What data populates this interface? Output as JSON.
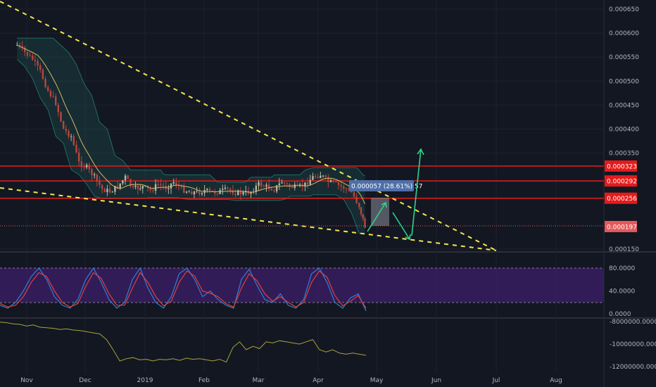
{
  "colors": {
    "background": "#131722",
    "up_candle": "#b7b7a4",
    "down_candle": "#b9453f",
    "ma": "#d6b764",
    "band": "#1f6b63",
    "trendline": "#f3e84b",
    "level": "#e41b1b",
    "arrow": "#2fd28a",
    "rsi_band": "#3e1f6b",
    "stoch_k": "#2f7fd6",
    "stoch_d": "#e0413a",
    "obv": "#a9a23a"
  },
  "chart_data": [
    {
      "type": "candlestick",
      "pane": "price",
      "x_labels": [
        "Nov",
        "Dec",
        "2019",
        "Feb",
        "Mar",
        "Apr",
        "May",
        "Jun",
        "Jul",
        "Aug"
      ],
      "y_ticks": [
        "0.000650",
        "0.000600",
        "0.000550",
        "0.000500",
        "0.000450",
        "0.000400",
        "0.000350",
        "0.000150"
      ],
      "ylim": [
        0.00015,
        0.00065
      ],
      "price_series": [
        [
          "2018-10-27",
          0.000575
        ],
        [
          "2018-10-31",
          0.00056
        ],
        [
          "2018-11-04",
          0.000545
        ],
        [
          "2018-11-08",
          0.00052
        ],
        [
          "2018-11-12",
          0.00048
        ],
        [
          "2018-11-16",
          0.000455
        ],
        [
          "2018-11-20",
          0.0004
        ],
        [
          "2018-11-24",
          0.000385
        ],
        [
          "2018-11-28",
          0.00033
        ],
        [
          "2018-12-02",
          0.00032
        ],
        [
          "2018-12-06",
          0.0003
        ],
        [
          "2018-12-10",
          0.000275
        ],
        [
          "2018-12-14",
          0.00027
        ],
        [
          "2018-12-18",
          0.00028
        ],
        [
          "2018-12-22",
          0.0003
        ],
        [
          "2018-12-26",
          0.000275
        ],
        [
          "2018-12-31",
          0.00028
        ],
        [
          "2019-01-04",
          0.000272
        ],
        [
          "2019-01-08",
          0.000285
        ],
        [
          "2019-01-12",
          0.000278
        ],
        [
          "2019-01-16",
          0.00029
        ],
        [
          "2019-01-20",
          0.000275
        ],
        [
          "2019-01-24",
          0.00027
        ],
        [
          "2019-01-28",
          0.000268
        ],
        [
          "2019-02-01",
          0.000272
        ],
        [
          "2019-02-05",
          0.000268
        ],
        [
          "2019-02-09",
          0.00027
        ],
        [
          "2019-02-13",
          0.000274
        ],
        [
          "2019-02-17",
          0.000268
        ],
        [
          "2019-02-21",
          0.000266
        ],
        [
          "2019-02-25",
          0.00027
        ],
        [
          "2019-03-01",
          0.000285
        ],
        [
          "2019-03-05",
          0.00028
        ],
        [
          "2019-03-09",
          0.000275
        ],
        [
          "2019-03-13",
          0.00029
        ],
        [
          "2019-03-17",
          0.00028
        ],
        [
          "2019-03-21",
          0.000278
        ],
        [
          "2019-03-25",
          0.000285
        ],
        [
          "2019-03-29",
          0.0003
        ],
        [
          "2019-04-02",
          0.000305
        ],
        [
          "2019-04-06",
          0.00029
        ],
        [
          "2019-04-10",
          0.000285
        ],
        [
          "2019-04-14",
          0.000278
        ],
        [
          "2019-04-18",
          0.000268
        ],
        [
          "2019-04-22",
          0.00024
        ],
        [
          "2019-04-25",
          0.000197
        ]
      ],
      "levels": [
        {
          "label": "0.000323",
          "value": 0.000323
        },
        {
          "label": "0.000292",
          "value": 0.000292
        },
        {
          "label": "0.000256",
          "value": 0.000256
        }
      ],
      "last_price": {
        "label": "0.000197",
        "value": 0.000197
      },
      "measure_label": "0.000057 (28.61%) 57"
    },
    {
      "type": "line",
      "pane": "stochastic_rsi",
      "y_ticks": [
        "80.0000",
        "40.0000",
        "0.0000"
      ],
      "band": [
        20,
        80
      ],
      "series": [
        {
          "values": [
            15,
            10,
            20,
            40,
            65,
            80,
            60,
            30,
            15,
            10,
            25,
            60,
            80,
            55,
            25,
            10,
            20,
            60,
            80,
            45,
            20,
            10,
            30,
            70,
            80,
            60,
            30,
            40,
            25,
            15,
            10,
            60,
            78,
            50,
            25,
            20,
            35,
            15,
            10,
            25,
            70,
            80,
            55,
            20,
            10,
            28,
            35,
            5
          ]
        },
        {
          "values": [
            18,
            12,
            15,
            30,
            55,
            72,
            65,
            40,
            20,
            12,
            18,
            48,
            72,
            62,
            35,
            15,
            15,
            45,
            72,
            55,
            30,
            14,
            22,
            55,
            75,
            66,
            40,
            36,
            30,
            18,
            12,
            45,
            70,
            58,
            35,
            22,
            30,
            20,
            12,
            20,
            55,
            75,
            64,
            32,
            14,
            22,
            32,
            10
          ]
        }
      ]
    },
    {
      "type": "line",
      "pane": "obv",
      "y_ticks": [
        "-8000000.0000",
        "-10000000.000",
        "-12000000.000"
      ],
      "ylim": [
        -12000000,
        -7800000
      ],
      "series": [
        {
          "values": [
            -8050000,
            -8100000,
            -8200000,
            -8250000,
            -8400000,
            -8300000,
            -8500000,
            -8550000,
            -8600000,
            -8700000,
            -8650000,
            -8750000,
            -8800000,
            -8900000,
            -9000000,
            -9100000,
            -9600000,
            -10500000,
            -11500000,
            -11300000,
            -11200000,
            -11400000,
            -11350000,
            -11500000,
            -11350000,
            -11400000,
            -11300000,
            -11450000,
            -11250000,
            -11350000,
            -11300000,
            -11400000,
            -11500000,
            -11350000,
            -11600000,
            -10300000,
            -9800000,
            -10500000,
            -10200000,
            -10400000,
            -9800000,
            -9900000,
            -9700000,
            -9800000,
            -9900000,
            -10000000,
            -9800000,
            -9600000,
            -10500000,
            -10700000,
            -10500000,
            -10800000,
            -10900000,
            -10800000,
            -10900000,
            -11000000
          ]
        }
      ]
    }
  ]
}
